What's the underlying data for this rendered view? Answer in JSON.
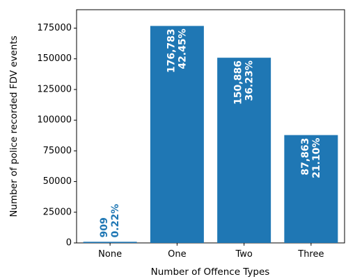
{
  "chart_data": {
    "type": "bar",
    "title": "",
    "xlabel": "Number of Offence Types",
    "ylabel": "Number of police recorded FDV events",
    "categories": [
      "None",
      "One",
      "Two",
      "Three"
    ],
    "values": [
      909,
      176783,
      150886,
      87863
    ],
    "value_labels": [
      "909",
      "176,783",
      "150,886",
      "87,863"
    ],
    "percent_labels": [
      "0.22%",
      "42.45%",
      "36.23%",
      "21.10%"
    ],
    "ylim": [
      0,
      190000
    ],
    "yticks": [
      0,
      25000,
      50000,
      75000,
      100000,
      125000,
      150000,
      175000
    ],
    "ytick_labels": [
      "0",
      "25000",
      "50000",
      "75000",
      "100000",
      "125000",
      "150000",
      "175000"
    ],
    "grid": false,
    "colors": {
      "bar": "#1f77b4",
      "label_inside": "#ffffff",
      "label_outside": "#1f77b4"
    }
  }
}
